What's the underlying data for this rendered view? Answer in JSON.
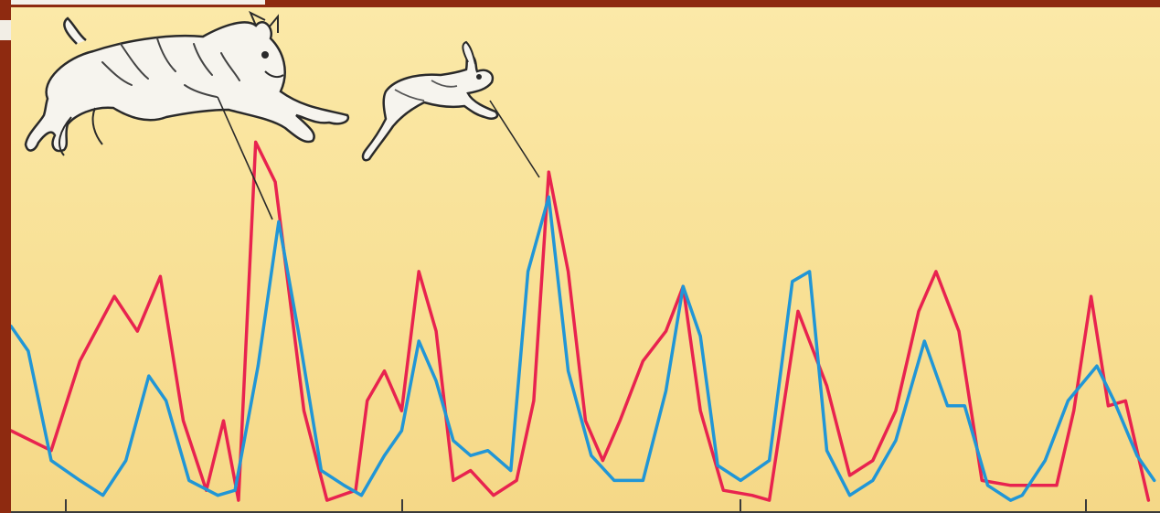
{
  "chart_data": {
    "type": "line",
    "title": "",
    "xlabel": "",
    "ylabel": "",
    "grid": false,
    "legend": "none",
    "x_ticks": 4,
    "ylim": [
      0,
      100
    ],
    "xlim": [
      0,
      100
    ],
    "series": [
      {
        "color": "#e8234f",
        "points": [
          [
            0,
            16
          ],
          [
            3.5,
            12
          ],
          [
            6,
            30
          ],
          [
            9,
            43
          ],
          [
            11,
            36
          ],
          [
            13,
            47
          ],
          [
            15,
            18
          ],
          [
            17,
            4
          ],
          [
            18.5,
            18
          ],
          [
            19.8,
            2
          ],
          [
            21.3,
            74
          ],
          [
            23,
            66
          ],
          [
            25.5,
            20
          ],
          [
            27.5,
            2
          ],
          [
            30,
            4
          ],
          [
            31,
            22
          ],
          [
            32.5,
            28
          ],
          [
            34,
            20
          ],
          [
            35.5,
            48
          ],
          [
            37,
            36
          ],
          [
            38.5,
            6
          ],
          [
            40,
            8
          ],
          [
            42,
            3
          ],
          [
            44,
            6
          ],
          [
            45.5,
            22
          ],
          [
            46.8,
            68
          ],
          [
            48.5,
            48
          ],
          [
            50,
            18
          ],
          [
            51.5,
            10
          ],
          [
            53,
            18
          ],
          [
            55,
            30
          ],
          [
            57,
            36
          ],
          [
            58.5,
            45
          ],
          [
            60,
            20
          ],
          [
            62,
            4
          ],
          [
            64.5,
            3
          ],
          [
            66,
            2
          ],
          [
            68.5,
            40
          ],
          [
            71,
            25
          ],
          [
            73,
            7
          ],
          [
            75,
            10
          ],
          [
            77,
            20
          ],
          [
            79,
            40
          ],
          [
            80.5,
            48
          ],
          [
            82.5,
            36
          ],
          [
            84.5,
            6
          ],
          [
            87,
            5
          ],
          [
            89,
            5
          ],
          [
            91,
            5
          ],
          [
            92.5,
            20
          ],
          [
            94,
            43
          ],
          [
            95.5,
            21
          ],
          [
            97,
            22
          ],
          [
            99,
            2
          ]
        ]
      },
      {
        "color": "#2196d6",
        "points": [
          [
            0,
            37
          ],
          [
            1.5,
            32
          ],
          [
            3.5,
            10
          ],
          [
            6,
            6
          ],
          [
            8,
            3
          ],
          [
            10,
            10
          ],
          [
            12,
            27
          ],
          [
            13.5,
            22
          ],
          [
            15.5,
            6
          ],
          [
            18,
            3
          ],
          [
            19.5,
            4
          ],
          [
            21.5,
            29
          ],
          [
            23.3,
            58
          ],
          [
            25,
            36
          ],
          [
            27,
            8
          ],
          [
            29,
            5
          ],
          [
            30.5,
            3
          ],
          [
            32.5,
            11
          ],
          [
            34,
            16
          ],
          [
            35.5,
            34
          ],
          [
            37,
            26
          ],
          [
            38.5,
            14
          ],
          [
            40,
            11
          ],
          [
            41.5,
            12
          ],
          [
            43.5,
            8
          ],
          [
            45,
            48
          ],
          [
            46.8,
            63
          ],
          [
            48.5,
            28
          ],
          [
            50.5,
            11
          ],
          [
            52.5,
            6
          ],
          [
            55,
            6
          ],
          [
            57,
            24
          ],
          [
            58.5,
            45
          ],
          [
            60,
            35
          ],
          [
            61.5,
            9
          ],
          [
            63.5,
            6
          ],
          [
            66,
            10
          ],
          [
            68,
            46
          ],
          [
            69.5,
            48
          ],
          [
            71,
            12
          ],
          [
            73,
            3
          ],
          [
            75,
            6
          ],
          [
            77,
            14
          ],
          [
            79.5,
            34
          ],
          [
            81.5,
            21
          ],
          [
            83,
            21
          ],
          [
            85,
            5
          ],
          [
            87,
            2
          ],
          [
            88,
            3
          ],
          [
            90,
            10
          ],
          [
            92,
            22
          ],
          [
            94.5,
            29
          ],
          [
            96,
            22
          ],
          [
            98,
            11
          ],
          [
            99.5,
            6
          ]
        ]
      }
    ]
  },
  "illustrations": {
    "predator": "lynx-illustration",
    "prey": "hare-illustration"
  }
}
